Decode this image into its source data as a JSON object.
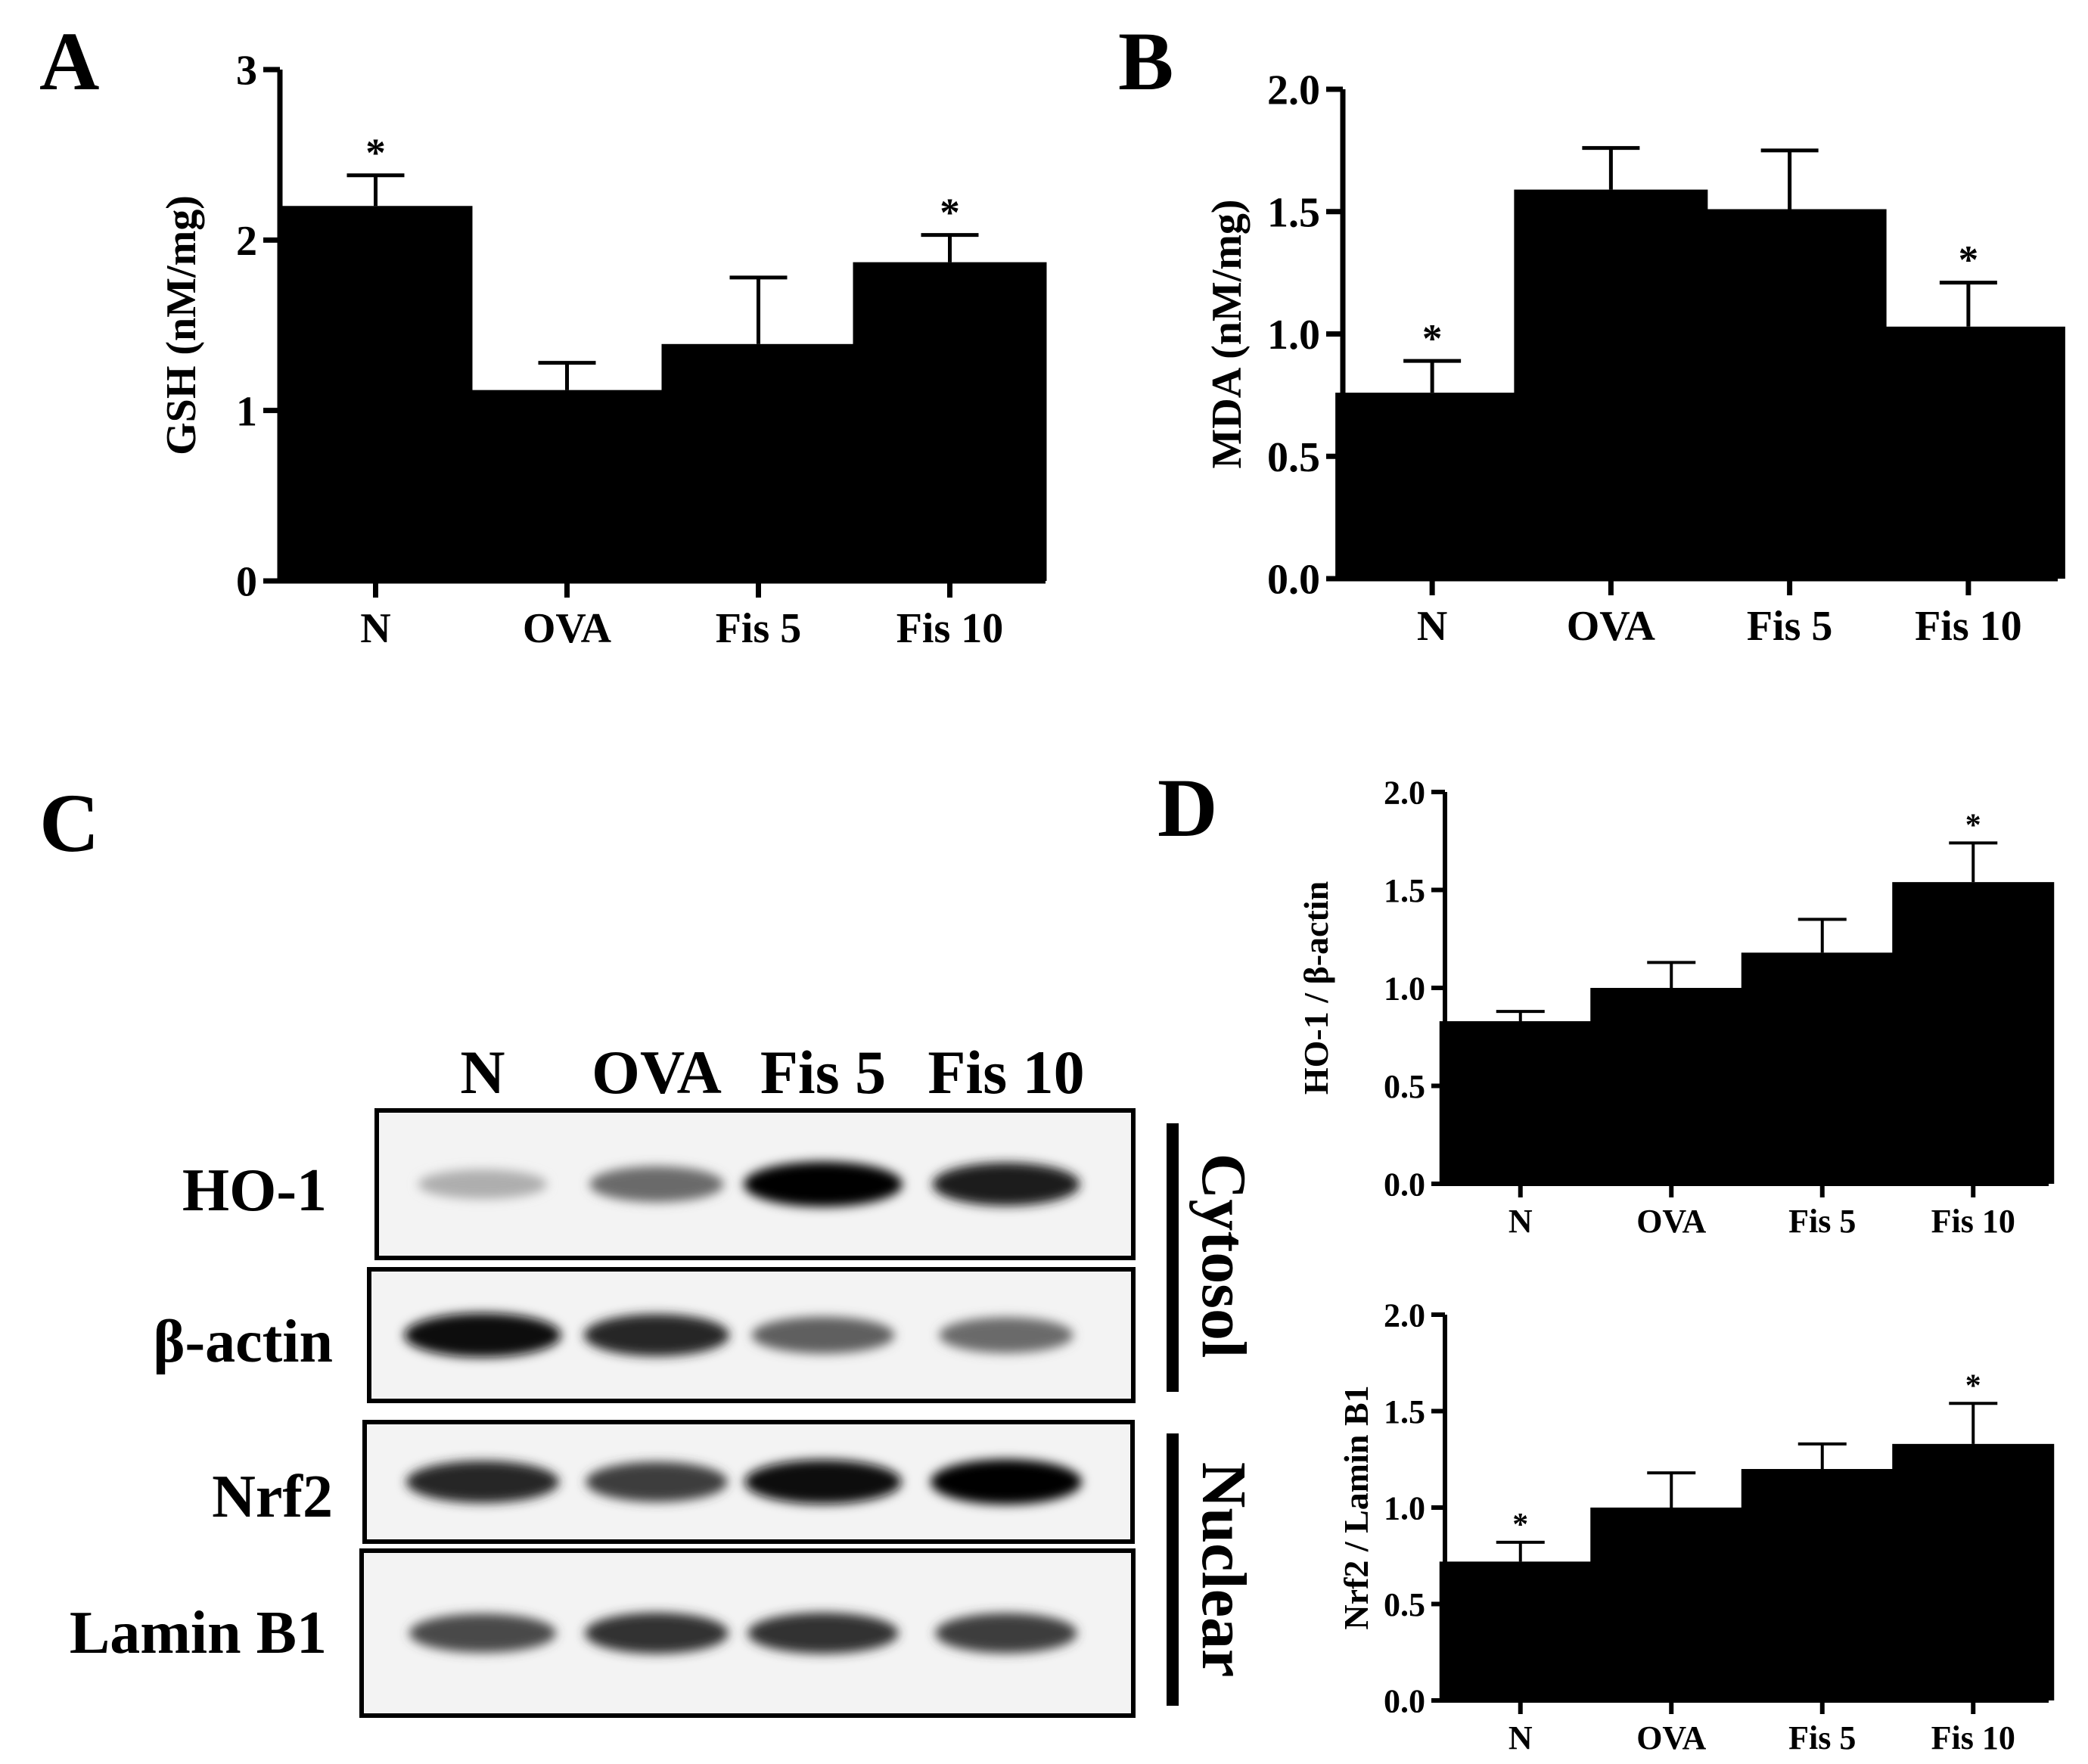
{
  "panel_labels": {
    "a": "A",
    "b": "B",
    "c": "C",
    "d": "D"
  },
  "chart_data": [
    {
      "id": "A",
      "type": "bar",
      "categories": [
        "N",
        "OVA",
        "Fis 5",
        "Fis 10"
      ],
      "values": [
        2.2,
        1.12,
        1.39,
        1.87
      ],
      "errors": [
        0.18,
        0.16,
        0.39,
        0.16
      ],
      "significance": [
        "*",
        "",
        "",
        "*"
      ],
      "title": "",
      "xlabel": "",
      "ylabel": "GSH (nM/mg)",
      "ylim": [
        0,
        3
      ],
      "yticks": [
        0,
        1,
        2,
        3
      ],
      "ytick_labels": [
        "0",
        "1",
        "2",
        "3"
      ],
      "bar_color": "#000000"
    },
    {
      "id": "B",
      "type": "bar",
      "categories": [
        "N",
        "OVA",
        "Fis 5",
        "Fis 10"
      ],
      "values": [
        0.76,
        1.59,
        1.51,
        1.03
      ],
      "errors": [
        0.13,
        0.17,
        0.24,
        0.18
      ],
      "significance": [
        "*",
        "",
        "",
        "*"
      ],
      "title": "",
      "xlabel": "",
      "ylabel": "MDA (nM/mg)",
      "ylim": [
        0,
        2
      ],
      "yticks": [
        0,
        0.5,
        1,
        1.5,
        2
      ],
      "ytick_labels": [
        "0.0",
        "0.5",
        "1.0",
        "1.5",
        "2.0"
      ],
      "bar_color": "#000000"
    },
    {
      "id": "D-top",
      "type": "bar",
      "categories": [
        "N",
        "OVA",
        "Fis 5",
        "Fis 10"
      ],
      "values": [
        0.83,
        1.0,
        1.18,
        1.54
      ],
      "errors": [
        0.05,
        0.13,
        0.17,
        0.2
      ],
      "significance": [
        "",
        "",
        "",
        "*"
      ],
      "title": "",
      "xlabel": "",
      "ylabel": "HO-1 / β-actin",
      "ylim": [
        0,
        2
      ],
      "yticks": [
        0,
        0.5,
        1,
        1.5,
        2
      ],
      "ytick_labels": [
        "0.0",
        "0.5",
        "1.0",
        "1.5",
        "2.0"
      ],
      "bar_color": "#000000"
    },
    {
      "id": "D-bottom",
      "type": "bar",
      "categories": [
        "N",
        "OVA",
        "Fis 5",
        "Fis 10"
      ],
      "values": [
        0.72,
        1.0,
        1.2,
        1.33
      ],
      "errors": [
        0.1,
        0.18,
        0.13,
        0.21
      ],
      "significance": [
        "*",
        "",
        "",
        "*"
      ],
      "title": "",
      "xlabel": "",
      "ylabel": "Nrf2 / Lamin B1",
      "ylim": [
        0,
        2
      ],
      "yticks": [
        0,
        0.5,
        1,
        1.5,
        2
      ],
      "ytick_labels": [
        "0.0",
        "0.5",
        "1.0",
        "1.5",
        "2.0"
      ],
      "bar_color": "#000000"
    }
  ],
  "blot": {
    "lanes": [
      "N",
      "OVA",
      "Fis 5",
      "Fis 10"
    ],
    "rows": [
      {
        "label": "HO-1",
        "intensities": [
          0.25,
          0.55,
          1.0,
          0.9
        ]
      },
      {
        "label": "β-actin",
        "intensities": [
          0.95,
          0.85,
          0.6,
          0.55
        ]
      },
      {
        "label": "Nrf2",
        "intensities": [
          0.85,
          0.75,
          0.95,
          1.0
        ]
      },
      {
        "label": "Lamin B1",
        "intensities": [
          0.7,
          0.8,
          0.8,
          0.75
        ]
      }
    ],
    "fractions": [
      "Cytosol",
      "Nuclear"
    ]
  }
}
